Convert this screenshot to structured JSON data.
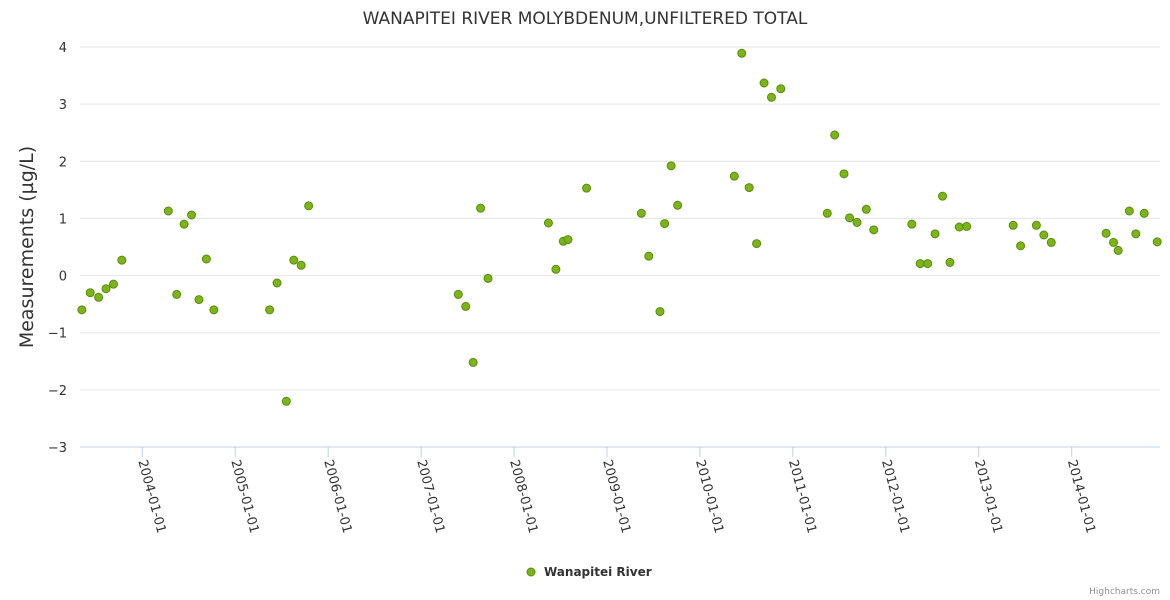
{
  "chart_data": {
    "type": "scatter",
    "title": "WANAPITEI RIVER MOLYBDENUM,UNFILTERED TOTAL",
    "xlabel": "",
    "ylabel": "Measurements (µg/L)",
    "ylim": [
      -3,
      4
    ],
    "yticks": [
      -3,
      -2,
      -1,
      0,
      1,
      2,
      3,
      4
    ],
    "xlim": [
      2003.33,
      2014.95
    ],
    "xticks": [
      {
        "value": 2004.0,
        "label": "2004-01-01"
      },
      {
        "value": 2005.0,
        "label": "2005-01-01"
      },
      {
        "value": 2006.0,
        "label": "2006-01-01"
      },
      {
        "value": 2007.0,
        "label": "2007-01-01"
      },
      {
        "value": 2008.0,
        "label": "2008-01-01"
      },
      {
        "value": 2009.0,
        "label": "2009-01-01"
      },
      {
        "value": 2010.0,
        "label": "2010-01-01"
      },
      {
        "value": 2011.0,
        "label": "2011-01-01"
      },
      {
        "value": 2012.0,
        "label": "2012-01-01"
      },
      {
        "value": 2013.0,
        "label": "2013-01-01"
      },
      {
        "value": 2014.0,
        "label": "2014-01-01"
      }
    ],
    "grid": true,
    "legend_position": "bottom-center",
    "series": [
      {
        "name": "Wanapitei River",
        "color": "#7cb518",
        "points": [
          [
            2003.35,
            -0.6
          ],
          [
            2003.44,
            -0.3
          ],
          [
            2003.53,
            -0.38
          ],
          [
            2003.61,
            -0.23
          ],
          [
            2003.69,
            -0.15
          ],
          [
            2003.78,
            0.27
          ],
          [
            2004.28,
            1.13
          ],
          [
            2004.37,
            -0.33
          ],
          [
            2004.45,
            0.9
          ],
          [
            2004.53,
            1.06
          ],
          [
            2004.61,
            -0.42
          ],
          [
            2004.69,
            0.29
          ],
          [
            2004.77,
            -0.6
          ],
          [
            2005.37,
            -0.6
          ],
          [
            2005.45,
            -0.13
          ],
          [
            2005.55,
            -2.2
          ],
          [
            2005.63,
            0.27
          ],
          [
            2005.71,
            0.18
          ],
          [
            2005.79,
            1.22
          ],
          [
            2007.4,
            -0.33
          ],
          [
            2007.48,
            -0.54
          ],
          [
            2007.56,
            -1.52
          ],
          [
            2007.64,
            1.18
          ],
          [
            2007.72,
            -0.05
          ],
          [
            2008.37,
            0.92
          ],
          [
            2008.45,
            0.11
          ],
          [
            2008.53,
            0.6
          ],
          [
            2008.58,
            0.63
          ],
          [
            2008.78,
            1.53
          ],
          [
            2009.37,
            1.09
          ],
          [
            2009.45,
            0.34
          ],
          [
            2009.57,
            -0.63
          ],
          [
            2009.62,
            0.91
          ],
          [
            2009.69,
            1.92
          ],
          [
            2009.76,
            1.23
          ],
          [
            2010.37,
            1.74
          ],
          [
            2010.45,
            3.89
          ],
          [
            2010.53,
            1.54
          ],
          [
            2010.61,
            0.56
          ],
          [
            2010.69,
            3.37
          ],
          [
            2010.77,
            3.12
          ],
          [
            2010.87,
            3.27
          ],
          [
            2011.37,
            1.09
          ],
          [
            2011.45,
            2.46
          ],
          [
            2011.55,
            1.78
          ],
          [
            2011.61,
            1.01
          ],
          [
            2011.69,
            0.93
          ],
          [
            2011.79,
            1.16
          ],
          [
            2011.87,
            0.8
          ],
          [
            2012.28,
            0.9
          ],
          [
            2012.37,
            0.21
          ],
          [
            2012.45,
            0.21
          ],
          [
            2012.53,
            0.73
          ],
          [
            2012.61,
            1.39
          ],
          [
            2012.69,
            0.23
          ],
          [
            2012.79,
            0.85
          ],
          [
            2012.87,
            0.86
          ],
          [
            2013.37,
            0.88
          ],
          [
            2013.45,
            0.52
          ],
          [
            2013.62,
            0.88
          ],
          [
            2013.7,
            0.71
          ],
          [
            2013.78,
            0.58
          ],
          [
            2014.37,
            0.74
          ],
          [
            2014.45,
            0.58
          ],
          [
            2014.5,
            0.44
          ],
          [
            2014.62,
            1.13
          ],
          [
            2014.69,
            0.73
          ],
          [
            2014.78,
            1.09
          ],
          [
            2014.92,
            0.59
          ]
        ]
      }
    ]
  },
  "legend": {
    "label": "Wanapitei River"
  },
  "credits": "Highcharts.com"
}
